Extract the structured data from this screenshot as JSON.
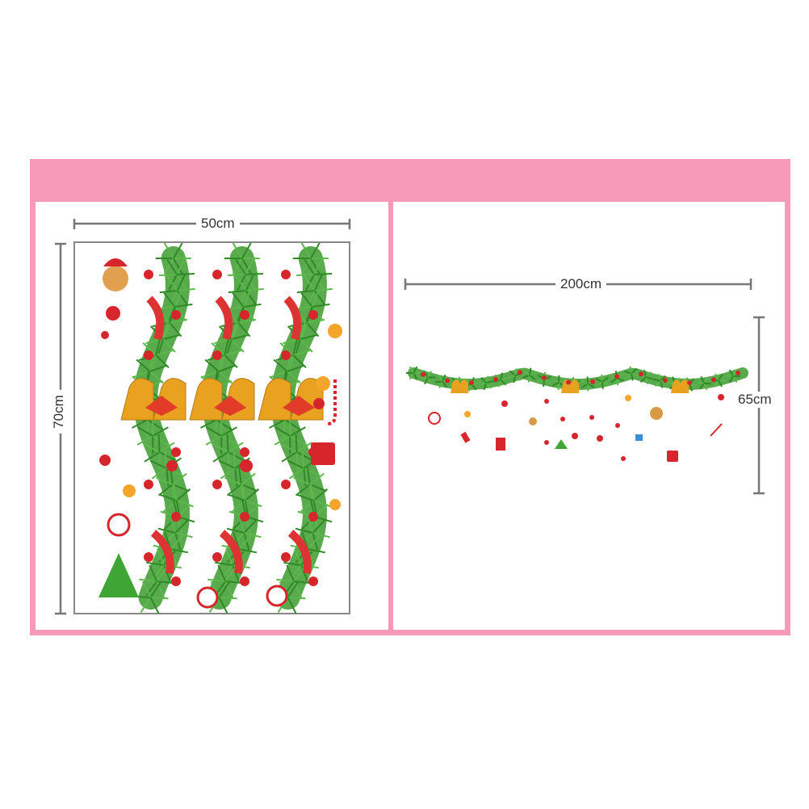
{
  "dimensions": {
    "sheet_width": "50cm",
    "sheet_height": "70cm",
    "installed_width": "200cm",
    "installed_height": "65cm"
  },
  "colors": {
    "frame": "#f79ab9",
    "dimension_line": "#777777",
    "pine": "#3c9a2e",
    "berry": "#d7262b",
    "bell": "#e8a21f"
  }
}
